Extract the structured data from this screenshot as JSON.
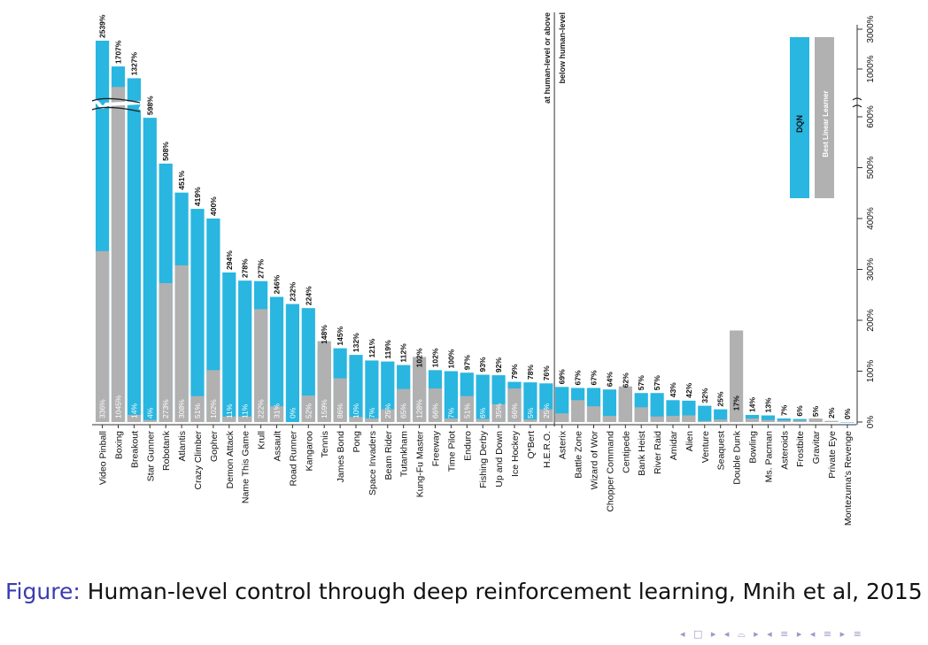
{
  "caption": {
    "prefix": "Figure:",
    "text": "Human-level control through deep reinforcement learning, Mnih et al, 2015"
  },
  "navigation": {
    "symbols": "◂ □ ▸ ◂ ⌓ ▸ ◂ ≡ ▸ ◂ ≡ ▸   ≡"
  },
  "colors": {
    "dqn": "#29b6e0",
    "linear": "#b1b1b1",
    "axis": "#333333"
  },
  "chart_data": {
    "type": "bar",
    "xlabel": "",
    "ylabel": "",
    "ylim": [
      0,
      3000
    ],
    "y_axis": "broken: linear 0%–600%, then compressed 1000% and 3000%",
    "yticks": [
      "0%",
      "100%",
      "200%",
      "300%",
      "400%",
      "500%",
      "600%",
      "1000%",
      "3000%"
    ],
    "legend": {
      "position": "top-right",
      "entries": [
        "DQN",
        "Best Linear Learner"
      ]
    },
    "threshold": {
      "above": "at human-level or above",
      "below": "below human-level"
    },
    "categories": [
      "Video Pinball",
      "Boxing",
      "Breakout",
      "Star Gunner",
      "Robotank",
      "Atlantis",
      "Crazy Climber",
      "Gopher",
      "Demon Attack",
      "Name This Game",
      "Krull",
      "Assault",
      "Road Runner",
      "Kangaroo",
      "Tennis",
      "James Bond",
      "Pong",
      "Space Invaders",
      "Beam Rider",
      "Tutankham",
      "Kung-Fu Master",
      "Freeway",
      "Time Pilot",
      "Enduro",
      "Fishing Derby",
      "Up and Down",
      "Ice Hockey",
      "Q*Bert",
      "H.E.R.O.",
      "Asterix",
      "Battle Zone",
      "Wizard of Wor",
      "Chopper Command",
      "Centipede",
      "Bank Heist",
      "River Raid",
      "Amidar",
      "Alien",
      "Venture",
      "Seaquest",
      "Double Dunk",
      "Bowling",
      "Ms. Pacman",
      "Asteroids",
      "Frostbite",
      "Gravitar",
      "Private Eye",
      "Montezuma's Revenge"
    ],
    "series": [
      {
        "name": "DQN",
        "values": [
          2539,
          1707,
          1327,
          598,
          508,
          451,
          419,
          400,
          294,
          278,
          277,
          246,
          232,
          224,
          148,
          145,
          132,
          121,
          119,
          112,
          102,
          102,
          100,
          97,
          93,
          92,
          79,
          78,
          76,
          69,
          67,
          67,
          64,
          62,
          57,
          57,
          43,
          42,
          32,
          25,
          17,
          14,
          13,
          7,
          6,
          5,
          2,
          0
        ],
        "labels": [
          "2539%",
          "1707%",
          "1327%",
          "598%",
          "508%",
          "451%",
          "419%",
          "400%",
          "294%",
          "278%",
          "277%",
          "246%",
          "232%",
          "224%",
          "148%",
          "145%",
          "132%",
          "121%",
          "119%",
          "112%",
          "102%",
          "102%",
          "100%",
          "97%",
          "93%",
          "92%",
          "79%",
          "78%",
          "76%",
          "69%",
          "67%",
          "67%",
          "64%",
          "62%",
          "57%",
          "57%",
          "43%",
          "42%",
          "32%",
          "25%",
          "17%",
          "14%",
          "13%",
          "7%",
          "6%",
          "5%",
          "2%",
          "0%"
        ]
      },
      {
        "name": "Best Linear Learner",
        "values": [
          336,
          1045,
          14,
          4,
          273,
          308,
          51,
          102,
          11,
          11,
          222,
          31,
          0,
          52,
          159,
          86,
          10,
          7,
          25,
          65,
          128,
          66,
          7,
          51,
          6,
          35,
          66,
          5,
          25,
          17,
          43,
          31,
          12,
          70,
          29,
          11,
          12,
          13,
          2,
          5,
          180,
          7,
          4,
          3,
          3,
          7,
          2,
          0
        ],
        "labels": [
          "336%",
          "1045%",
          "14%",
          "4%",
          "273%",
          "308%",
          "51%",
          "102%",
          "11%",
          "11%",
          "222%",
          "31%",
          "0%",
          "52%",
          "159%",
          "86%",
          "10%",
          "7%",
          "25%",
          "65%",
          "128%",
          "66%",
          "7%",
          "51%",
          "6%",
          "35%",
          "66%",
          "5%",
          "25%",
          "",
          "",
          "",
          "",
          "",
          "",
          "",
          "",
          "",
          "",
          "",
          "",
          "",
          "",
          "",
          "",
          "",
          "",
          ""
        ]
      }
    ]
  }
}
